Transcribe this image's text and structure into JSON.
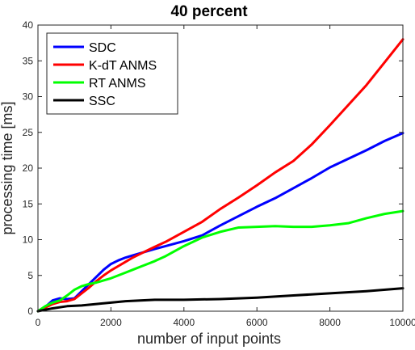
{
  "chart_data": {
    "type": "line",
    "title": "40 percent",
    "xlabel": "number of input points",
    "ylabel": "processing time [ms]",
    "xlim": [
      0,
      10000
    ],
    "ylim": [
      0,
      40
    ],
    "xticks": [
      0,
      2000,
      4000,
      6000,
      8000,
      10000
    ],
    "yticks": [
      0,
      5,
      10,
      15,
      20,
      25,
      30,
      35,
      40
    ],
    "grid": false,
    "legend_position": "top-left",
    "series": [
      {
        "name": "SDC",
        "color": "#0000ff",
        "x": [
          0,
          200,
          400,
          600,
          800,
          1000,
          1200,
          1400,
          1600,
          1800,
          2000,
          2200,
          2400,
          2600,
          2800,
          3000,
          3200,
          3500,
          4000,
          4500,
          5000,
          5500,
          6000,
          6500,
          7000,
          7500,
          8000,
          8500,
          9000,
          9500,
          10000
        ],
        "y": [
          0,
          0.6,
          1.5,
          1.8,
          1.7,
          1.8,
          2.8,
          3.8,
          4.8,
          5.8,
          6.6,
          7.1,
          7.5,
          7.8,
          8.1,
          8.4,
          8.7,
          9.1,
          9.8,
          10.6,
          12.0,
          13.3,
          14.6,
          15.8,
          17.2,
          18.6,
          20.1,
          21.3,
          22.5,
          23.8,
          24.9
        ]
      },
      {
        "name": "K-dT ANMS",
        "color": "#ff0000",
        "x": [
          0,
          200,
          400,
          600,
          800,
          1000,
          1200,
          1400,
          1600,
          1800,
          2000,
          2200,
          2400,
          2600,
          2800,
          3000,
          3200,
          3500,
          4000,
          4500,
          5000,
          5500,
          6000,
          6500,
          7000,
          7500,
          8000,
          8500,
          9000,
          9500,
          10000
        ],
        "y": [
          0,
          0.5,
          1.0,
          1.3,
          1.4,
          1.7,
          2.5,
          3.3,
          4.2,
          5.0,
          5.7,
          6.3,
          6.9,
          7.5,
          8.0,
          8.5,
          9.0,
          9.7,
          11.1,
          12.5,
          14.3,
          15.9,
          17.6,
          19.4,
          21.0,
          23.3,
          26.0,
          28.8,
          31.6,
          34.8,
          38.0
        ]
      },
      {
        "name": "RT ANMS",
        "color": "#00ff00",
        "x": [
          0,
          200,
          400,
          600,
          800,
          1000,
          1200,
          1400,
          1600,
          1800,
          2000,
          2200,
          2400,
          2600,
          2800,
          3000,
          3200,
          3500,
          4000,
          4500,
          5000,
          5500,
          6000,
          6500,
          7000,
          7500,
          8000,
          8500,
          9000,
          9500,
          10000
        ],
        "y": [
          0,
          0.7,
          1.2,
          1.5,
          2.2,
          3.0,
          3.5,
          3.8,
          4.0,
          4.3,
          4.6,
          5.0,
          5.4,
          5.8,
          6.2,
          6.6,
          7.0,
          7.7,
          9.1,
          10.3,
          11.1,
          11.7,
          11.8,
          11.9,
          11.8,
          11.8,
          12.0,
          12.3,
          13.0,
          13.6,
          14.0
        ]
      },
      {
        "name": "SSC",
        "color": "#000000",
        "x": [
          0,
          400,
          800,
          1200,
          1600,
          2000,
          2400,
          2800,
          3200,
          4000,
          5000,
          6000,
          7000,
          8000,
          9000,
          10000
        ],
        "y": [
          0,
          0.4,
          0.7,
          0.8,
          1.0,
          1.2,
          1.4,
          1.5,
          1.6,
          1.6,
          1.7,
          1.9,
          2.2,
          2.5,
          2.8,
          3.2
        ]
      }
    ]
  }
}
